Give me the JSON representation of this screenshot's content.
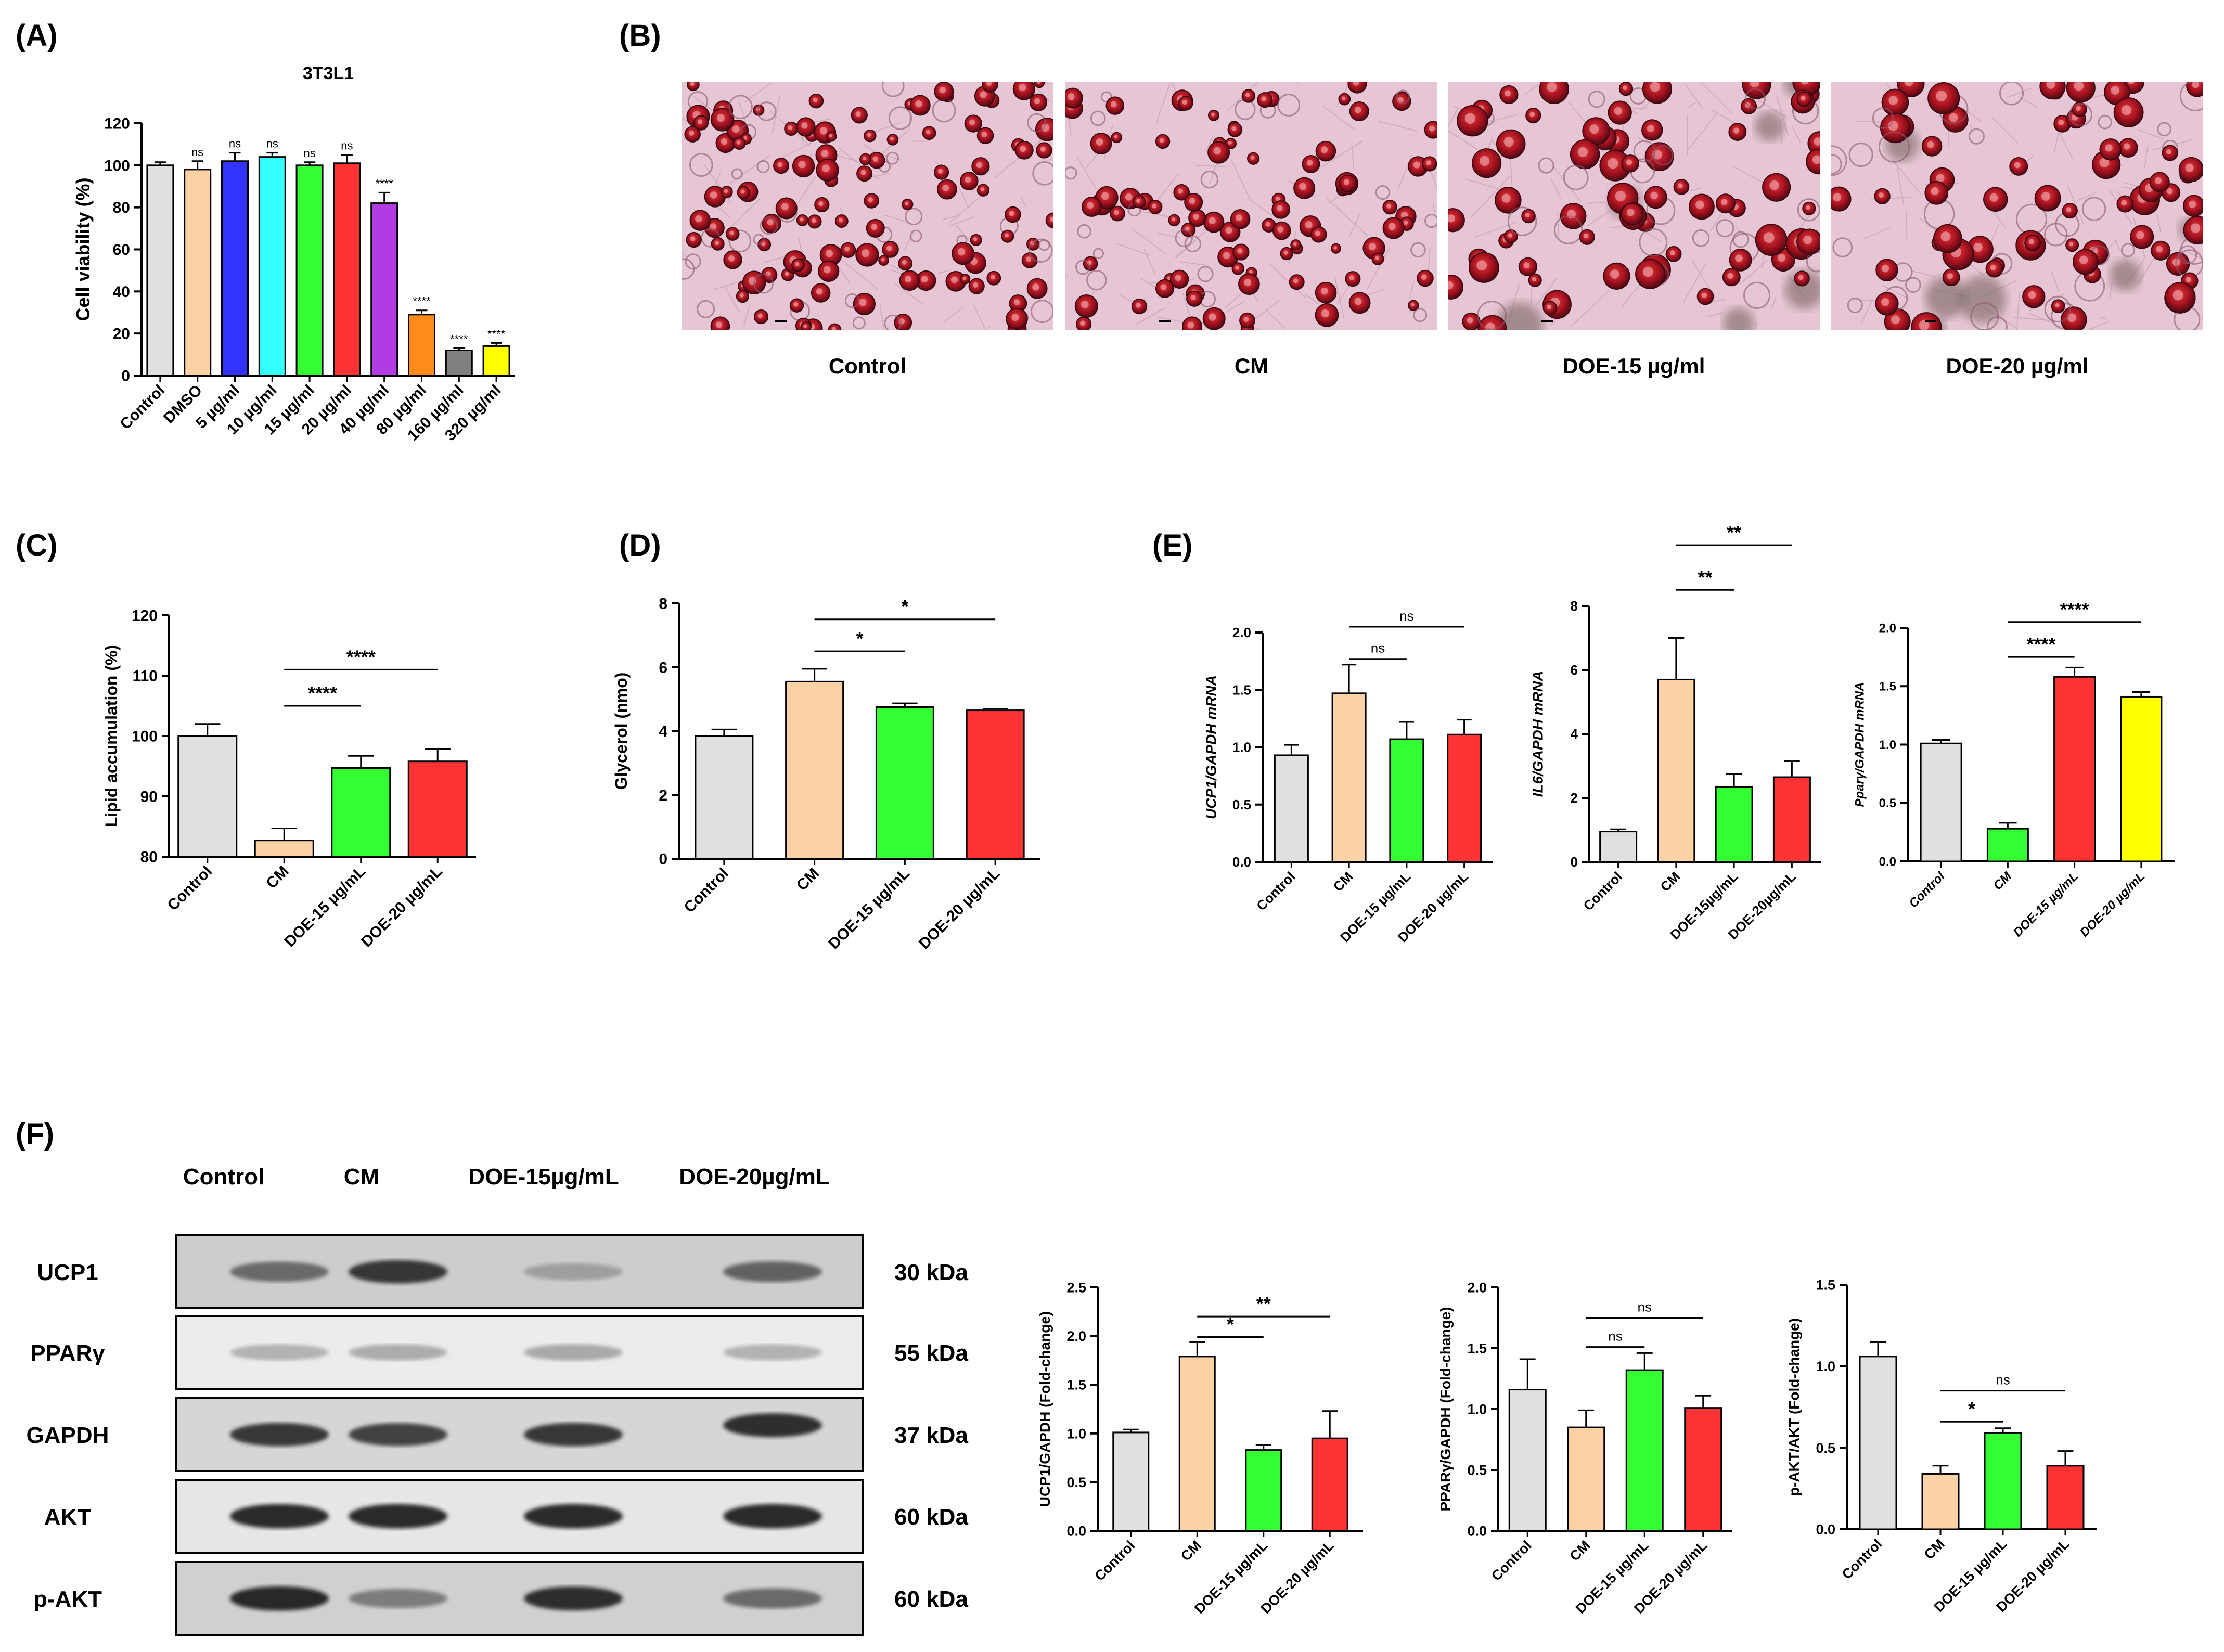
{
  "panels": {
    "A": "(A)",
    "B": "(B)",
    "C": "(C)",
    "D": "(D)",
    "E": "(E)",
    "F": "(F)"
  },
  "micro_labels": [
    "Control",
    "CM",
    "DOE-15 µg/ml",
    "DOE-20 µg/ml"
  ],
  "blot": {
    "lanes": [
      "Control",
      "CM",
      "DOE-15µg/mL",
      "DOE-20µg/mL"
    ],
    "rows": [
      {
        "protein": "UCP1",
        "kda": "30 kDa",
        "intensity": [
          0.55,
          0.85,
          0.25,
          0.6
        ],
        "bg": "#cdcdcd"
      },
      {
        "protein": "PPARγ",
        "kda": "55 kDa",
        "intensity": [
          0.15,
          0.18,
          0.2,
          0.15
        ],
        "bg": "#ececec"
      },
      {
        "protein": "GAPDH",
        "kda": "37 kDa",
        "intensity": [
          0.85,
          0.8,
          0.85,
          0.9
        ],
        "bg": "#d6d6d6"
      },
      {
        "protein": "AKT",
        "kda": "60 kDa",
        "intensity": [
          0.95,
          0.95,
          0.95,
          0.95
        ],
        "bg": "#e6e6e6"
      },
      {
        "protein": "p-AKT",
        "kda": "60 kDa",
        "intensity": [
          0.95,
          0.45,
          0.9,
          0.55
        ],
        "bg": "#d0d0d0"
      }
    ]
  },
  "colors": {
    "control": "#e0e0e0",
    "dmso": "#fcd2a4",
    "blue": "#3333ff",
    "cyan": "#33ffff",
    "green": "#33ff33",
    "red": "#ff3333",
    "purple": "#b33be6",
    "orange": "#ff8c1a",
    "gray": "#808080",
    "yellow": "#ffff00"
  },
  "chart_data": [
    {
      "id": "A",
      "type": "bar",
      "title": "3T3L1",
      "ylabel": "Cell viability (%)",
      "ylim": [
        0,
        120
      ],
      "yticks": [
        0,
        20,
        40,
        60,
        80,
        100,
        120
      ],
      "categories": [
        "Control",
        "DMSO",
        "5 µg/ml",
        "10 µg/ml",
        "15 µg/ml",
        "20 µg/ml",
        "40 µg/ml",
        "80 µg/ml",
        "160 µg/ml",
        "320 µg/ml"
      ],
      "values": [
        100,
        98,
        102,
        104,
        100,
        101,
        82,
        29,
        12,
        14
      ],
      "errors": [
        1.5,
        4,
        4,
        2,
        1.5,
        4,
        5,
        2,
        1,
        1.5
      ],
      "colors": [
        "#e0e0e0",
        "#fcd2a4",
        "#3333ff",
        "#33ffff",
        "#33ff33",
        "#ff3333",
        "#b33be6",
        "#ff8c1a",
        "#808080",
        "#ffff00"
      ],
      "labels": [
        "",
        "ns",
        "ns",
        "ns",
        "ns",
        "ns",
        "****",
        "****",
        "****",
        "****"
      ]
    },
    {
      "id": "C",
      "type": "bar",
      "ylabel": "Lipid accumulation (%)",
      "ylim": [
        80,
        120
      ],
      "yticks": [
        80,
        90,
        100,
        110,
        120
      ],
      "categories": [
        "Control",
        "CM",
        "DOE-15 µg/mL",
        "DOE-20 µg/mL"
      ],
      "values": [
        100,
        82.7,
        94.7,
        95.8
      ],
      "errors": [
        2,
        2,
        2,
        2
      ],
      "colors": [
        "#e0e0e0",
        "#fcd2a4",
        "#33ff33",
        "#ff3333"
      ],
      "significance": [
        {
          "from": 1,
          "to": 2,
          "label": "****",
          "y": 105
        },
        {
          "from": 1,
          "to": 3,
          "label": "****",
          "y": 111
        }
      ]
    },
    {
      "id": "D",
      "type": "bar",
      "ylabel": "Glycerol (nmo)",
      "ylim": [
        0,
        8
      ],
      "yticks": [
        0,
        2,
        4,
        6,
        8
      ],
      "categories": [
        "Control",
        "CM",
        "DOE-15 µg/mL",
        "DOE-20 µg/mL"
      ],
      "values": [
        3.85,
        5.55,
        4.75,
        4.65
      ],
      "errors": [
        0.2,
        0.4,
        0.12,
        0.05
      ],
      "colors": [
        "#e0e0e0",
        "#fcd2a4",
        "#33ff33",
        "#ff3333"
      ],
      "significance": [
        {
          "from": 1,
          "to": 2,
          "label": "*",
          "y": 6.5
        },
        {
          "from": 1,
          "to": 3,
          "label": "*",
          "y": 7.5
        }
      ]
    },
    {
      "id": "E1",
      "type": "bar",
      "ylabel": "UCP1/GAPDH mRNA",
      "ylim": [
        0,
        2.0
      ],
      "yticks": [
        0.0,
        0.5,
        1.0,
        1.5,
        2.0
      ],
      "categories": [
        "Control",
        "CM",
        "DOE-15 µg/mL",
        "DOE-20 µg/mL"
      ],
      "values": [
        0.93,
        1.47,
        1.07,
        1.11
      ],
      "errors": [
        0.09,
        0.25,
        0.15,
        0.13
      ],
      "colors": [
        "#e0e0e0",
        "#fcd2a4",
        "#33ff33",
        "#ff3333"
      ],
      "significance": [
        {
          "from": 1,
          "to": 2,
          "label": "ns",
          "y": 1.77
        },
        {
          "from": 1,
          "to": 3,
          "label": "ns",
          "y": 2.05
        }
      ]
    },
    {
      "id": "E2",
      "type": "bar",
      "ylabel": "IL6/GAPDH mRNA",
      "ylim": [
        0,
        8
      ],
      "yticks": [
        0,
        2,
        4,
        6,
        8
      ],
      "categories": [
        "Control",
        "CM",
        "DOE-15µg/mL",
        "DOE-20µg/mL"
      ],
      "values": [
        0.95,
        5.7,
        2.35,
        2.65
      ],
      "errors": [
        0.07,
        1.3,
        0.4,
        0.5
      ],
      "colors": [
        "#e0e0e0",
        "#fcd2a4",
        "#33ff33",
        "#ff3333"
      ],
      "significance": [
        {
          "from": 1,
          "to": 2,
          "label": "**",
          "y": 8.5
        },
        {
          "from": 1,
          "to": 3,
          "label": "**",
          "y": 9.9
        }
      ]
    },
    {
      "id": "E3",
      "type": "bar",
      "ylabel": "Pparγ/GAPDH mRNA",
      "ylim": [
        0,
        2.0
      ],
      "yticks": [
        0.0,
        0.5,
        1.0,
        1.5,
        2.0
      ],
      "categories": [
        "Control",
        "CM",
        "DOE-15 µg/mL",
        "DOE-20 µg/mL"
      ],
      "values": [
        1.01,
        0.28,
        1.58,
        1.41
      ],
      "errors": [
        0.03,
        0.05,
        0.08,
        0.04
      ],
      "colors": [
        "#e0e0e0",
        "#33ff33",
        "#ff3333",
        "#ffff00"
      ],
      "significance": [
        {
          "from": 1,
          "to": 2,
          "label": "****",
          "y": 1.75
        },
        {
          "from": 1,
          "to": 3,
          "label": "****",
          "y": 2.05
        }
      ]
    },
    {
      "id": "F1",
      "type": "bar",
      "ylabel": "UCP1/GAPDH (Fold-change)",
      "ylim": [
        0,
        2.5
      ],
      "yticks": [
        0.0,
        0.5,
        1.0,
        1.5,
        2.0,
        2.5
      ],
      "categories": [
        "Control",
        "CM",
        "DOE-15 µg/mL",
        "DOE-20 µg/mL"
      ],
      "values": [
        1.01,
        1.79,
        0.83,
        0.95
      ],
      "errors": [
        0.03,
        0.15,
        0.05,
        0.28
      ],
      "colors": [
        "#e0e0e0",
        "#fcd2a4",
        "#33ff33",
        "#ff3333"
      ],
      "significance": [
        {
          "from": 1,
          "to": 2,
          "label": "*",
          "y": 1.99
        },
        {
          "from": 1,
          "to": 3,
          "label": "**",
          "y": 2.2
        }
      ]
    },
    {
      "id": "F2",
      "type": "bar",
      "ylabel": "PPARγ/GAPDH (Fold-change)",
      "ylim": [
        0,
        2.0
      ],
      "yticks": [
        0.0,
        0.5,
        1.0,
        1.5,
        2.0
      ],
      "categories": [
        "Control",
        "CM",
        "DOE-15 µg/mL",
        "DOE-20 µg/mL"
      ],
      "values": [
        1.16,
        0.85,
        1.32,
        1.01
      ],
      "errors": [
        0.25,
        0.14,
        0.14,
        0.1
      ],
      "colors": [
        "#e0e0e0",
        "#fcd2a4",
        "#33ff33",
        "#ff3333"
      ],
      "significance": [
        {
          "from": 1,
          "to": 2,
          "label": "ns",
          "y": 1.51
        },
        {
          "from": 1,
          "to": 3,
          "label": "ns",
          "y": 1.75
        }
      ]
    },
    {
      "id": "F3",
      "type": "bar",
      "ylabel": "p-AKT/AKT (Fold-change)",
      "ylim": [
        0,
        1.5
      ],
      "yticks": [
        0.0,
        0.5,
        1.0,
        1.5
      ],
      "categories": [
        "Control",
        "CM",
        "DOE-15 µg/mL",
        "DOE-20 µg/mL"
      ],
      "values": [
        1.06,
        0.34,
        0.59,
        0.39
      ],
      "errors": [
        0.09,
        0.05,
        0.03,
        0.09
      ],
      "colors": [
        "#e0e0e0",
        "#fcd2a4",
        "#33ff33",
        "#ff3333"
      ],
      "significance": [
        {
          "from": 1,
          "to": 2,
          "label": "*",
          "y": 0.66
        },
        {
          "from": 1,
          "to": 3,
          "label": "ns",
          "y": 0.85
        }
      ]
    }
  ]
}
